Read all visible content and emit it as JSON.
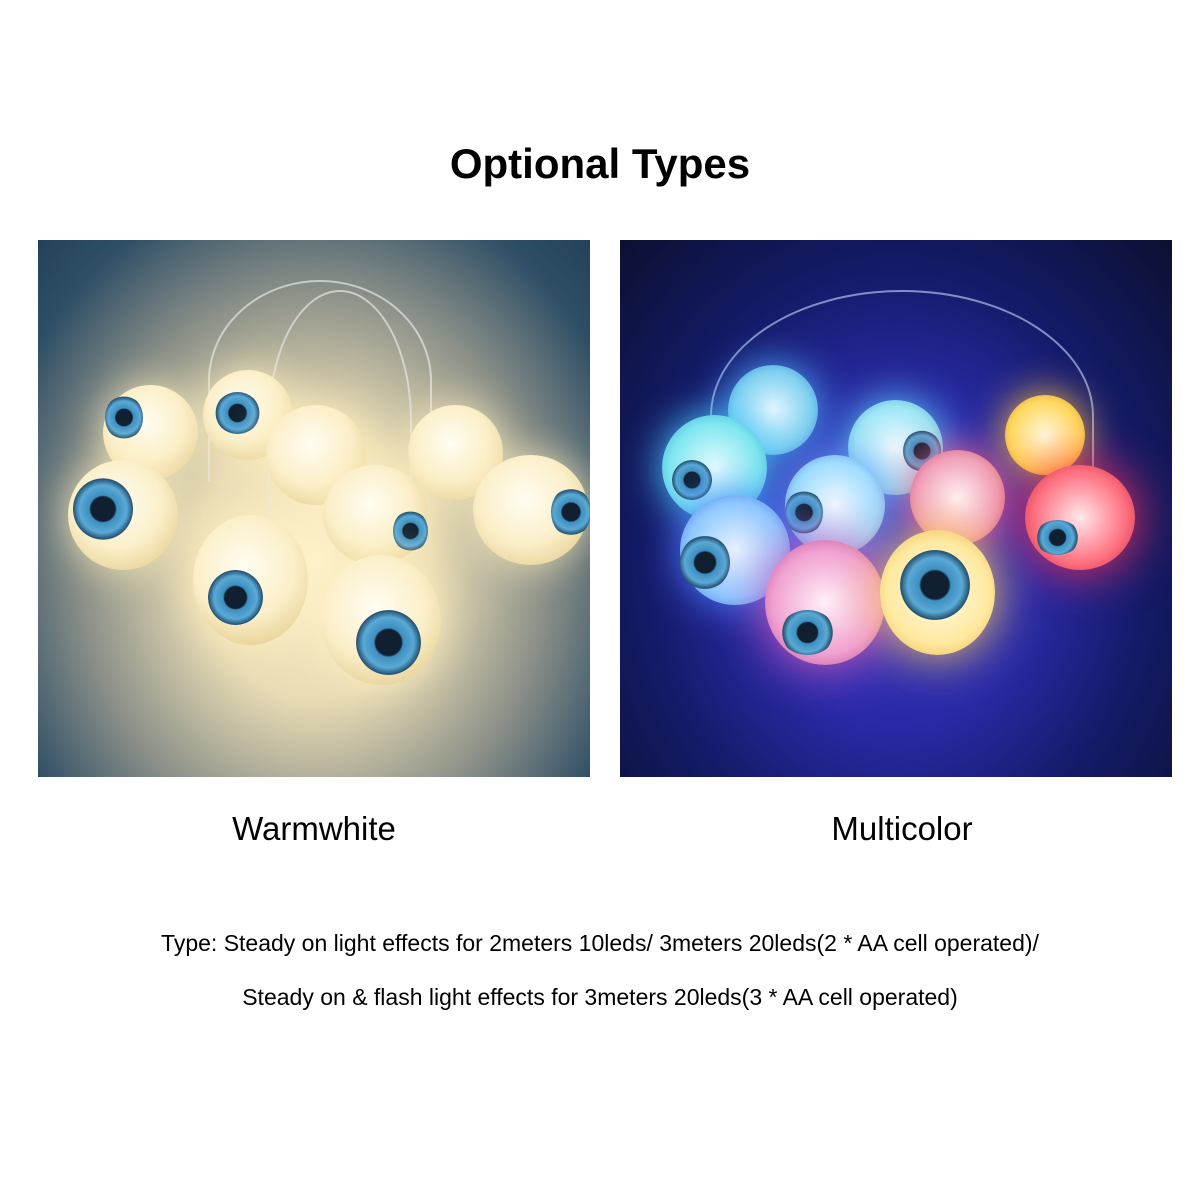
{
  "title": "Optional Types",
  "options": [
    {
      "label": "Warmwhite"
    },
    {
      "label": "Multicolor"
    }
  ],
  "description": {
    "line1": "Type: Steady on light effects for 2meters 10leds/ 3meters 20leds(2 * AA cell operated)/",
    "line2": "Steady on & flash light effects for 3meters 20leds(3 * AA cell operated)"
  }
}
